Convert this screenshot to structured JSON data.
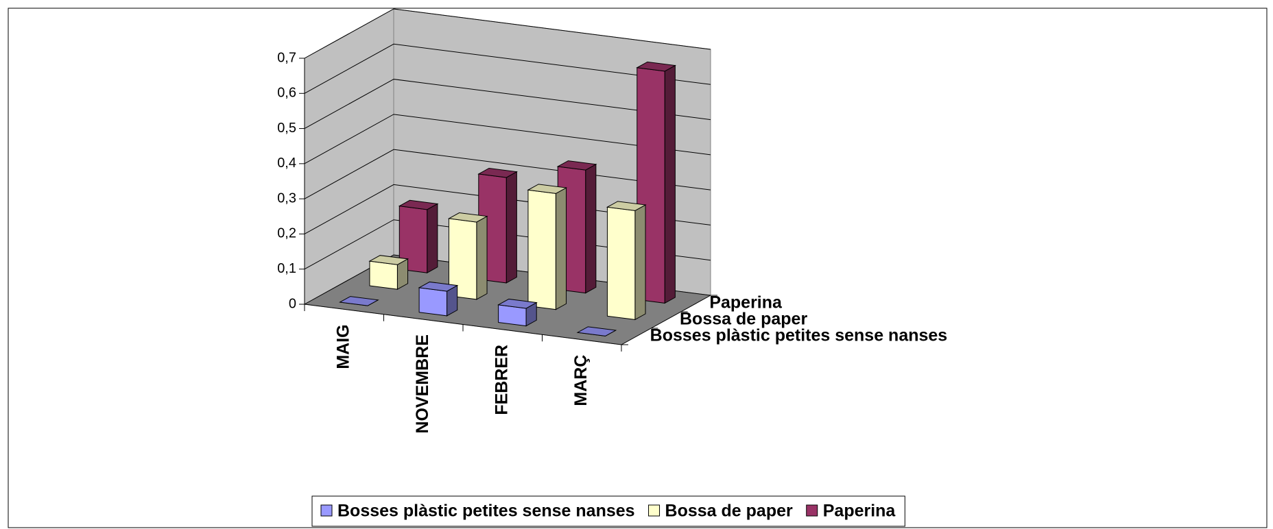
{
  "chart_data": {
    "type": "bar3d",
    "categories": [
      "MAIG",
      "NOVEMBRE",
      "FEBRER",
      "MARÇ"
    ],
    "series": [
      {
        "name": "Bosses plàstic petites sense nanses",
        "color": "#9999ff",
        "values": [
          0,
          0.07,
          0.05,
          0
        ]
      },
      {
        "name": "Bossa de paper",
        "color": "#ffffcc",
        "values": [
          0.07,
          0.22,
          0.33,
          0.31
        ]
      },
      {
        "name": "Paperina",
        "color": "#993366",
        "values": [
          0.18,
          0.3,
          0.35,
          0.66
        ]
      }
    ],
    "ylim": [
      0,
      0.7
    ],
    "yticks": [
      0,
      {
        "value": 0.1,
        "label": "0,1"
      },
      {
        "value": 0.2,
        "label": "0,2"
      },
      {
        "value": 0.3,
        "label": "0,3"
      },
      {
        "value": 0.4,
        "label": "0,4"
      },
      {
        "value": 0.5,
        "label": "0,5"
      },
      {
        "value": 0.6,
        "label": "0,6"
      },
      {
        "value": 0.7,
        "label": "0,7"
      }
    ],
    "grid": true,
    "legend": "bottom"
  }
}
